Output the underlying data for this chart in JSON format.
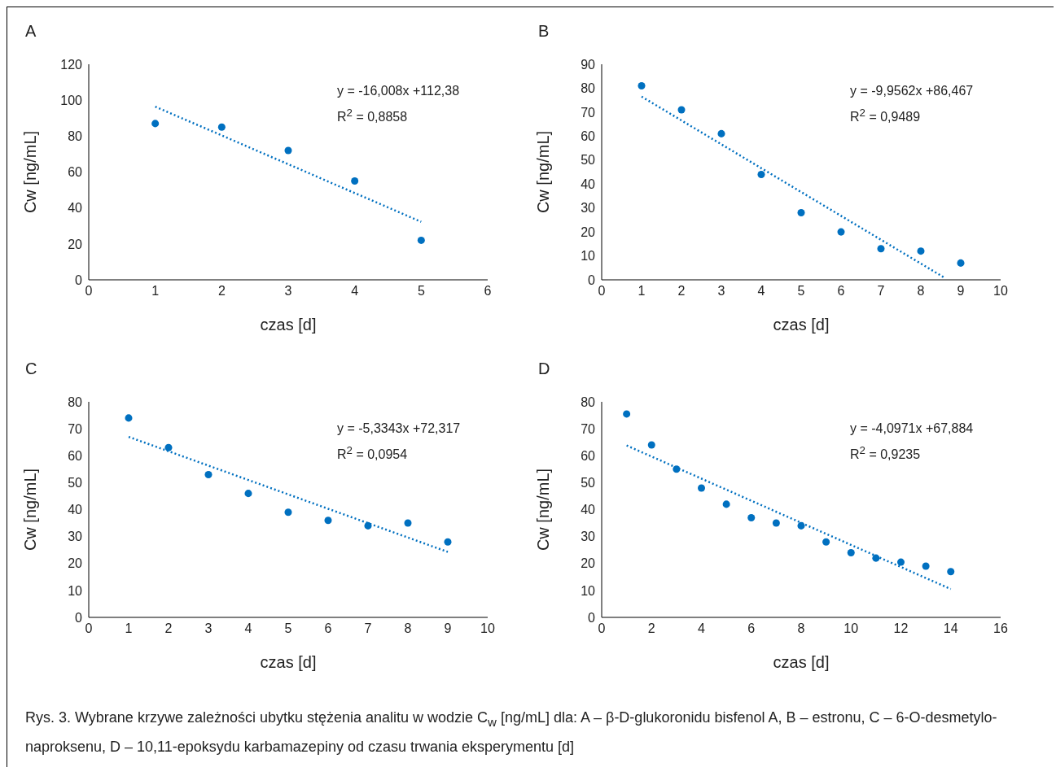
{
  "chart_data": [
    {
      "type": "scatter",
      "title": "A",
      "xlabel": "czas [d]",
      "ylabel": "Cw [ng/mL]",
      "x": [
        1,
        2,
        3,
        4,
        5
      ],
      "xlim": [
        0,
        6
      ],
      "xticks": [
        0,
        1,
        2,
        3,
        4,
        5,
        6
      ],
      "ylim": [
        0,
        120
      ],
      "yticks": [
        0,
        20,
        40,
        60,
        80,
        100,
        120
      ],
      "grid": false,
      "legend": false,
      "series": [
        {
          "marker": "circle",
          "color": "#0070c0",
          "values": [
            87,
            85,
            72,
            55,
            22
          ]
        },
        {
          "type": "line",
          "marker": "none",
          "line_style": "dotted",
          "color": "#0070c0",
          "x": [
            1,
            5
          ],
          "values": [
            96.4,
            32.3
          ]
        }
      ],
      "annotations": [
        "y = -16,008x +112,38",
        "R$^{2}$ = 0,8858"
      ]
    },
    {
      "type": "scatter",
      "title": "B",
      "xlabel": "czas [d]",
      "ylabel": "Cw [ng/mL]",
      "x": [
        1,
        2,
        3,
        4,
        5,
        6,
        7,
        8,
        9
      ],
      "xlim": [
        0,
        10
      ],
      "xticks": [
        0,
        1,
        2,
        3,
        4,
        5,
        6,
        7,
        8,
        9,
        10
      ],
      "ylim": [
        0,
        90
      ],
      "yticks": [
        0,
        10,
        20,
        30,
        40,
        50,
        60,
        70,
        80,
        90
      ],
      "grid": false,
      "legend": false,
      "series": [
        {
          "marker": "circle",
          "color": "#0070c0",
          "values": [
            81,
            71,
            61,
            44,
            28,
            20,
            13,
            12,
            7
          ]
        },
        {
          "type": "line",
          "marker": "none",
          "line_style": "dotted",
          "color": "#0070c0",
          "x": [
            1,
            8.6
          ],
          "values": [
            76.5,
            0.8
          ]
        }
      ],
      "annotations": [
        "y = -9,9562x +86,467",
        "R$^{2}$ = 0,9489"
      ]
    },
    {
      "type": "scatter",
      "title": "C",
      "xlabel": "czas [d]",
      "ylabel": "Cw [ng/mL]",
      "x": [
        1,
        2,
        3,
        4,
        5,
        6,
        7,
        8,
        9
      ],
      "xlim": [
        0,
        10
      ],
      "xticks": [
        0,
        1,
        2,
        3,
        4,
        5,
        6,
        7,
        8,
        9,
        10
      ],
      "ylim": [
        0,
        80
      ],
      "yticks": [
        0,
        10,
        20,
        30,
        40,
        50,
        60,
        70,
        80
      ],
      "grid": false,
      "legend": false,
      "series": [
        {
          "marker": "circle",
          "color": "#0070c0",
          "values": [
            74,
            63,
            53,
            46,
            39,
            36,
            34,
            35,
            28
          ]
        },
        {
          "type": "line",
          "marker": "none",
          "line_style": "dotted",
          "color": "#0070c0",
          "x": [
            1,
            9
          ],
          "values": [
            67,
            24.3
          ]
        }
      ],
      "annotations": [
        "y = -5,3343x +72,317",
        "R$^{2}$ = 0,0954"
      ]
    },
    {
      "type": "scatter",
      "title": "D",
      "xlabel": "czas [d]",
      "ylabel": "Cw [ng/mL]",
      "x": [
        1,
        2,
        3,
        4,
        5,
        6,
        7,
        8,
        9,
        10,
        11,
        12,
        13,
        14
      ],
      "xlim": [
        0,
        16
      ],
      "xticks": [
        0,
        2,
        4,
        6,
        8,
        10,
        12,
        14,
        16
      ],
      "ylim": [
        0,
        80
      ],
      "yticks": [
        0,
        10,
        20,
        30,
        40,
        50,
        60,
        70,
        80
      ],
      "grid": false,
      "legend": false,
      "series": [
        {
          "marker": "circle",
          "color": "#0070c0",
          "values": [
            75.5,
            64,
            55,
            48,
            42,
            37,
            35,
            34,
            28,
            24,
            22,
            20.5,
            19,
            17
          ]
        },
        {
          "type": "line",
          "marker": "none",
          "line_style": "dotted",
          "color": "#0070c0",
          "x": [
            1,
            14
          ],
          "values": [
            63.8,
            10.5
          ]
        }
      ],
      "annotations": [
        "y = -4,0971x +67,884",
        "R$^{2}$ = 0,9235",
        "Rys. 3. Wybrane krzywe zależności ubytku stężenia analitu w wodzie C$_{w}$ [ng/mL] dla: A – β-D-glukoronidu bisfenol A, B – estronu, C – 6-O-desmetylo-naproksenu, D – 10,11-epoksydu karbamazepiny od czasu trwania eksperymentu [d]"
      ]
    }
  ]
}
